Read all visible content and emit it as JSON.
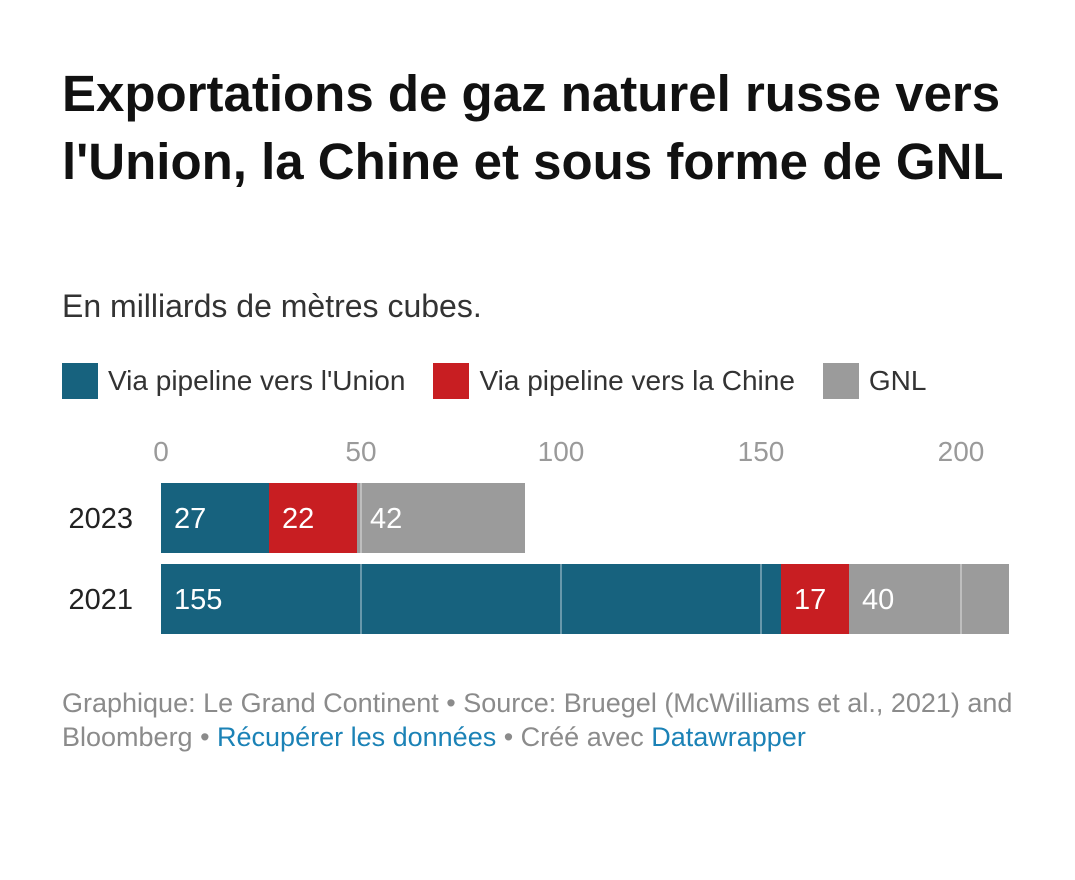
{
  "title": "Exportations de gaz naturel russe vers l'Union, la Chine et sous forme de GNL",
  "subtitle": "En milliards de mètres cubes.",
  "colors": {
    "union": "#17627e",
    "chine": "#c81e22",
    "gnl": "#9b9b9b",
    "axis_text": "#9a9a9a",
    "link": "#1b82b6"
  },
  "footer": {
    "part1": "Graphique: Le Grand Continent • Source: Bruegel (McWilliams et al., 2021) and Bloomberg • ",
    "link1": "Récupérer les données",
    "part2": " • Créé avec ",
    "link2": "Datawrapper"
  },
  "chart_data": {
    "type": "bar",
    "orientation": "horizontal",
    "stacked": true,
    "categories": [
      "2023",
      "2021"
    ],
    "series": [
      {
        "name": "Via pipeline vers l'Union",
        "color": "#17627e",
        "values": [
          27,
          155
        ]
      },
      {
        "name": "Via pipeline vers la Chine",
        "color": "#c81e22",
        "values": [
          22,
          17
        ]
      },
      {
        "name": "GNL",
        "color": "#9b9b9b",
        "values": [
          42,
          40
        ]
      }
    ],
    "xlim": [
      0,
      212
    ],
    "xticks": [
      0,
      50,
      100,
      150,
      200
    ],
    "axis_position": "top",
    "grid": true,
    "legend_position": "top-left"
  }
}
